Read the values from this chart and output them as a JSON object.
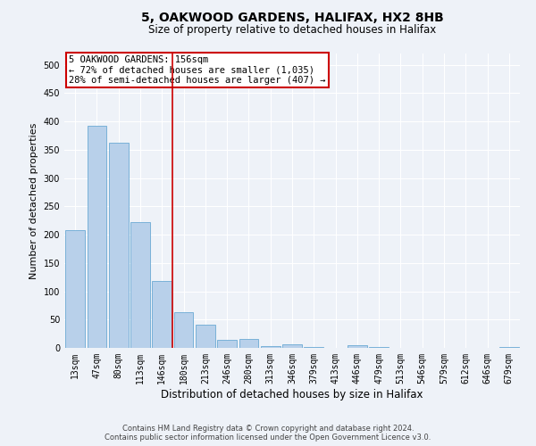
{
  "title_line1": "5, OAKWOOD GARDENS, HALIFAX, HX2 8HB",
  "title_line2": "Size of property relative to detached houses in Halifax",
  "xlabel": "Distribution of detached houses by size in Halifax",
  "ylabel": "Number of detached properties",
  "categories": [
    "13sqm",
    "47sqm",
    "80sqm",
    "113sqm",
    "146sqm",
    "180sqm",
    "213sqm",
    "246sqm",
    "280sqm",
    "313sqm",
    "346sqm",
    "379sqm",
    "413sqm",
    "446sqm",
    "479sqm",
    "513sqm",
    "546sqm",
    "579sqm",
    "612sqm",
    "646sqm",
    "679sqm"
  ],
  "values": [
    208,
    393,
    362,
    222,
    118,
    63,
    41,
    14,
    15,
    3,
    6,
    1,
    0,
    5,
    1,
    0,
    0,
    0,
    0,
    0,
    1
  ],
  "bar_color": "#b8d0ea",
  "bar_edge_color": "#6aaad4",
  "vline_index": 5,
  "vline_color": "#cc0000",
  "annotation_text": "5 OAKWOOD GARDENS: 156sqm\n← 72% of detached houses are smaller (1,035)\n28% of semi-detached houses are larger (407) →",
  "annotation_box_facecolor": "#ffffff",
  "annotation_box_edgecolor": "#cc0000",
  "ylim": [
    0,
    520
  ],
  "yticks": [
    0,
    50,
    100,
    150,
    200,
    250,
    300,
    350,
    400,
    450,
    500
  ],
  "footer_line1": "Contains HM Land Registry data © Crown copyright and database right 2024.",
  "footer_line2": "Contains public sector information licensed under the Open Government Licence v3.0.",
  "bg_color": "#eef2f8",
  "plot_bg_color": "#eef2f8",
  "grid_color": "#ffffff",
  "title1_fontsize": 10,
  "title2_fontsize": 8.5,
  "xlabel_fontsize": 8.5,
  "ylabel_fontsize": 8,
  "tick_fontsize": 7,
  "ann_fontsize": 7.5,
  "footer_fontsize": 6
}
